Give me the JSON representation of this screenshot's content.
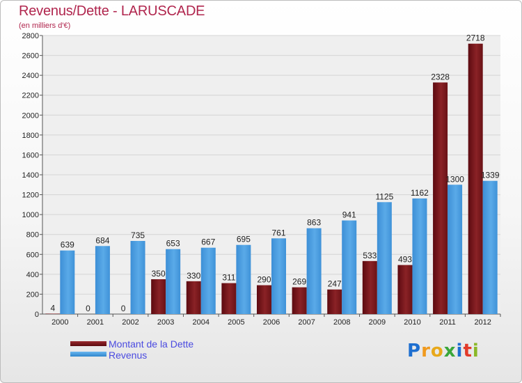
{
  "chart_data": {
    "type": "bar",
    "title": "Revenus/Dette - LARUSCADE",
    "subtitle": "(en milliers d'€)",
    "categories": [
      "2000",
      "2001",
      "2002",
      "2003",
      "2004",
      "2005",
      "2006",
      "2007",
      "2008",
      "2009",
      "2010",
      "2011",
      "2012"
    ],
    "series": [
      {
        "name": "Montant de la Dette",
        "color": "#7a1a1e",
        "values": [
          4,
          0,
          0,
          350,
          330,
          311,
          290,
          269,
          247,
          533,
          493,
          2328,
          2718
        ]
      },
      {
        "name": "Revenus",
        "color": "#4a9ee0",
        "values": [
          639,
          684,
          735,
          653,
          667,
          695,
          761,
          863,
          941,
          1125,
          1162,
          1300,
          1339
        ]
      }
    ],
    "ylim": [
      0,
      2800
    ],
    "yticks": [
      0,
      200,
      400,
      600,
      800,
      1000,
      1200,
      1400,
      1600,
      1800,
      2000,
      2200,
      2400,
      2600,
      2800
    ],
    "grid": true,
    "legend": "bottom-left"
  },
  "logo": {
    "text": "Proxiti",
    "letters": [
      "P",
      "r",
      "o",
      "x",
      "i",
      "t",
      "i"
    ],
    "colors": [
      "#1e6fd0",
      "#f09a1e",
      "#e8a81a",
      "#3aa63a",
      "#1e6fd0",
      "#e23a2a",
      "#8ab828"
    ]
  }
}
